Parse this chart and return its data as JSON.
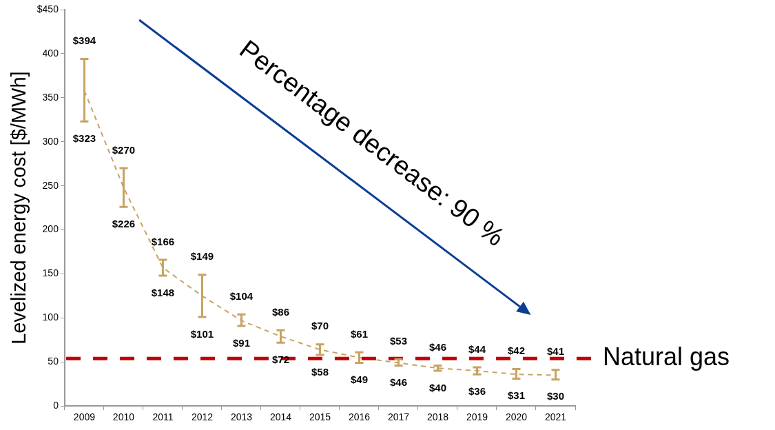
{
  "chart_data": {
    "type": "line",
    "ylabel": "Levelized energy cost [$/MWh]",
    "categories": [
      "2009",
      "2010",
      "2011",
      "2012",
      "2013",
      "2014",
      "2015",
      "2016",
      "2017",
      "2018",
      "2019",
      "2020",
      "2021"
    ],
    "series": [
      {
        "color": "#c8a262",
        "line_style": "dashed",
        "values": [
          358,
          248,
          157,
          125,
          97,
          79,
          64,
          55,
          49,
          43,
          40,
          36,
          35
        ],
        "errors": [
          [
            323,
            394
          ],
          [
            226,
            270
          ],
          [
            148,
            166
          ],
          [
            101,
            149
          ],
          [
            91,
            104
          ],
          [
            72,
            86
          ],
          [
            58,
            70
          ],
          [
            49,
            61
          ],
          [
            46,
            53
          ],
          [
            40,
            46
          ],
          [
            36,
            44
          ],
          [
            31,
            42
          ],
          [
            30,
            41
          ]
        ]
      }
    ],
    "ylim": [
      0,
      450
    ],
    "yticks": [
      0,
      50,
      100,
      150,
      200,
      250,
      300,
      350,
      400,
      {
        "value": 450,
        "label": "$450"
      }
    ],
    "grid": false,
    "legend": false,
    "ref_lines": [
      {
        "axis": "y",
        "value": 54,
        "label": "Natural gas",
        "color": "#c00000",
        "line_style": "dashed"
      }
    ],
    "annotations": [
      "Percentage decrease: 90 %",
      {
        "text": "$394",
        "x": "2009",
        "y": 394
      },
      {
        "text": "$323",
        "x": "2009",
        "y": 323
      },
      {
        "text": "$270",
        "x": "2010",
        "y": 270
      },
      {
        "text": "$226",
        "x": "2010",
        "y": 226
      },
      {
        "text": "$166",
        "x": "2011",
        "y": 166
      },
      {
        "text": "$148",
        "x": "2011",
        "y": 148
      },
      {
        "text": "$149",
        "x": "2012",
        "y": 149
      },
      {
        "text": "$101",
        "x": "2012",
        "y": 101
      },
      {
        "text": "$104",
        "x": "2013",
        "y": 104
      },
      {
        "text": "$91",
        "x": "2013",
        "y": 91
      },
      {
        "text": "$86",
        "x": "2014",
        "y": 86
      },
      {
        "text": "$72",
        "x": "2014",
        "y": 72
      },
      {
        "text": "$70",
        "x": "2015",
        "y": 70
      },
      {
        "text": "$58",
        "x": "2015",
        "y": 58
      },
      {
        "text": "$61",
        "x": "2016",
        "y": 61
      },
      {
        "text": "$49",
        "x": "2016",
        "y": 49
      },
      {
        "text": "$53",
        "x": "2017",
        "y": 53
      },
      {
        "text": "$46",
        "x": "2017",
        "y": 46
      },
      {
        "text": "$46",
        "x": "2018",
        "y": 46
      },
      {
        "text": "$40",
        "x": "2018",
        "y": 40
      },
      {
        "text": "$44",
        "x": "2019",
        "y": 44
      },
      {
        "text": "$36",
        "x": "2019",
        "y": 36
      },
      {
        "text": "$42",
        "x": "2020",
        "y": 42
      },
      {
        "text": "$31",
        "x": "2020",
        "y": 31
      },
      {
        "text": "$41",
        "x": "2021",
        "y": 41
      },
      {
        "text": "$30",
        "x": "2021",
        "y": 30
      }
    ]
  }
}
